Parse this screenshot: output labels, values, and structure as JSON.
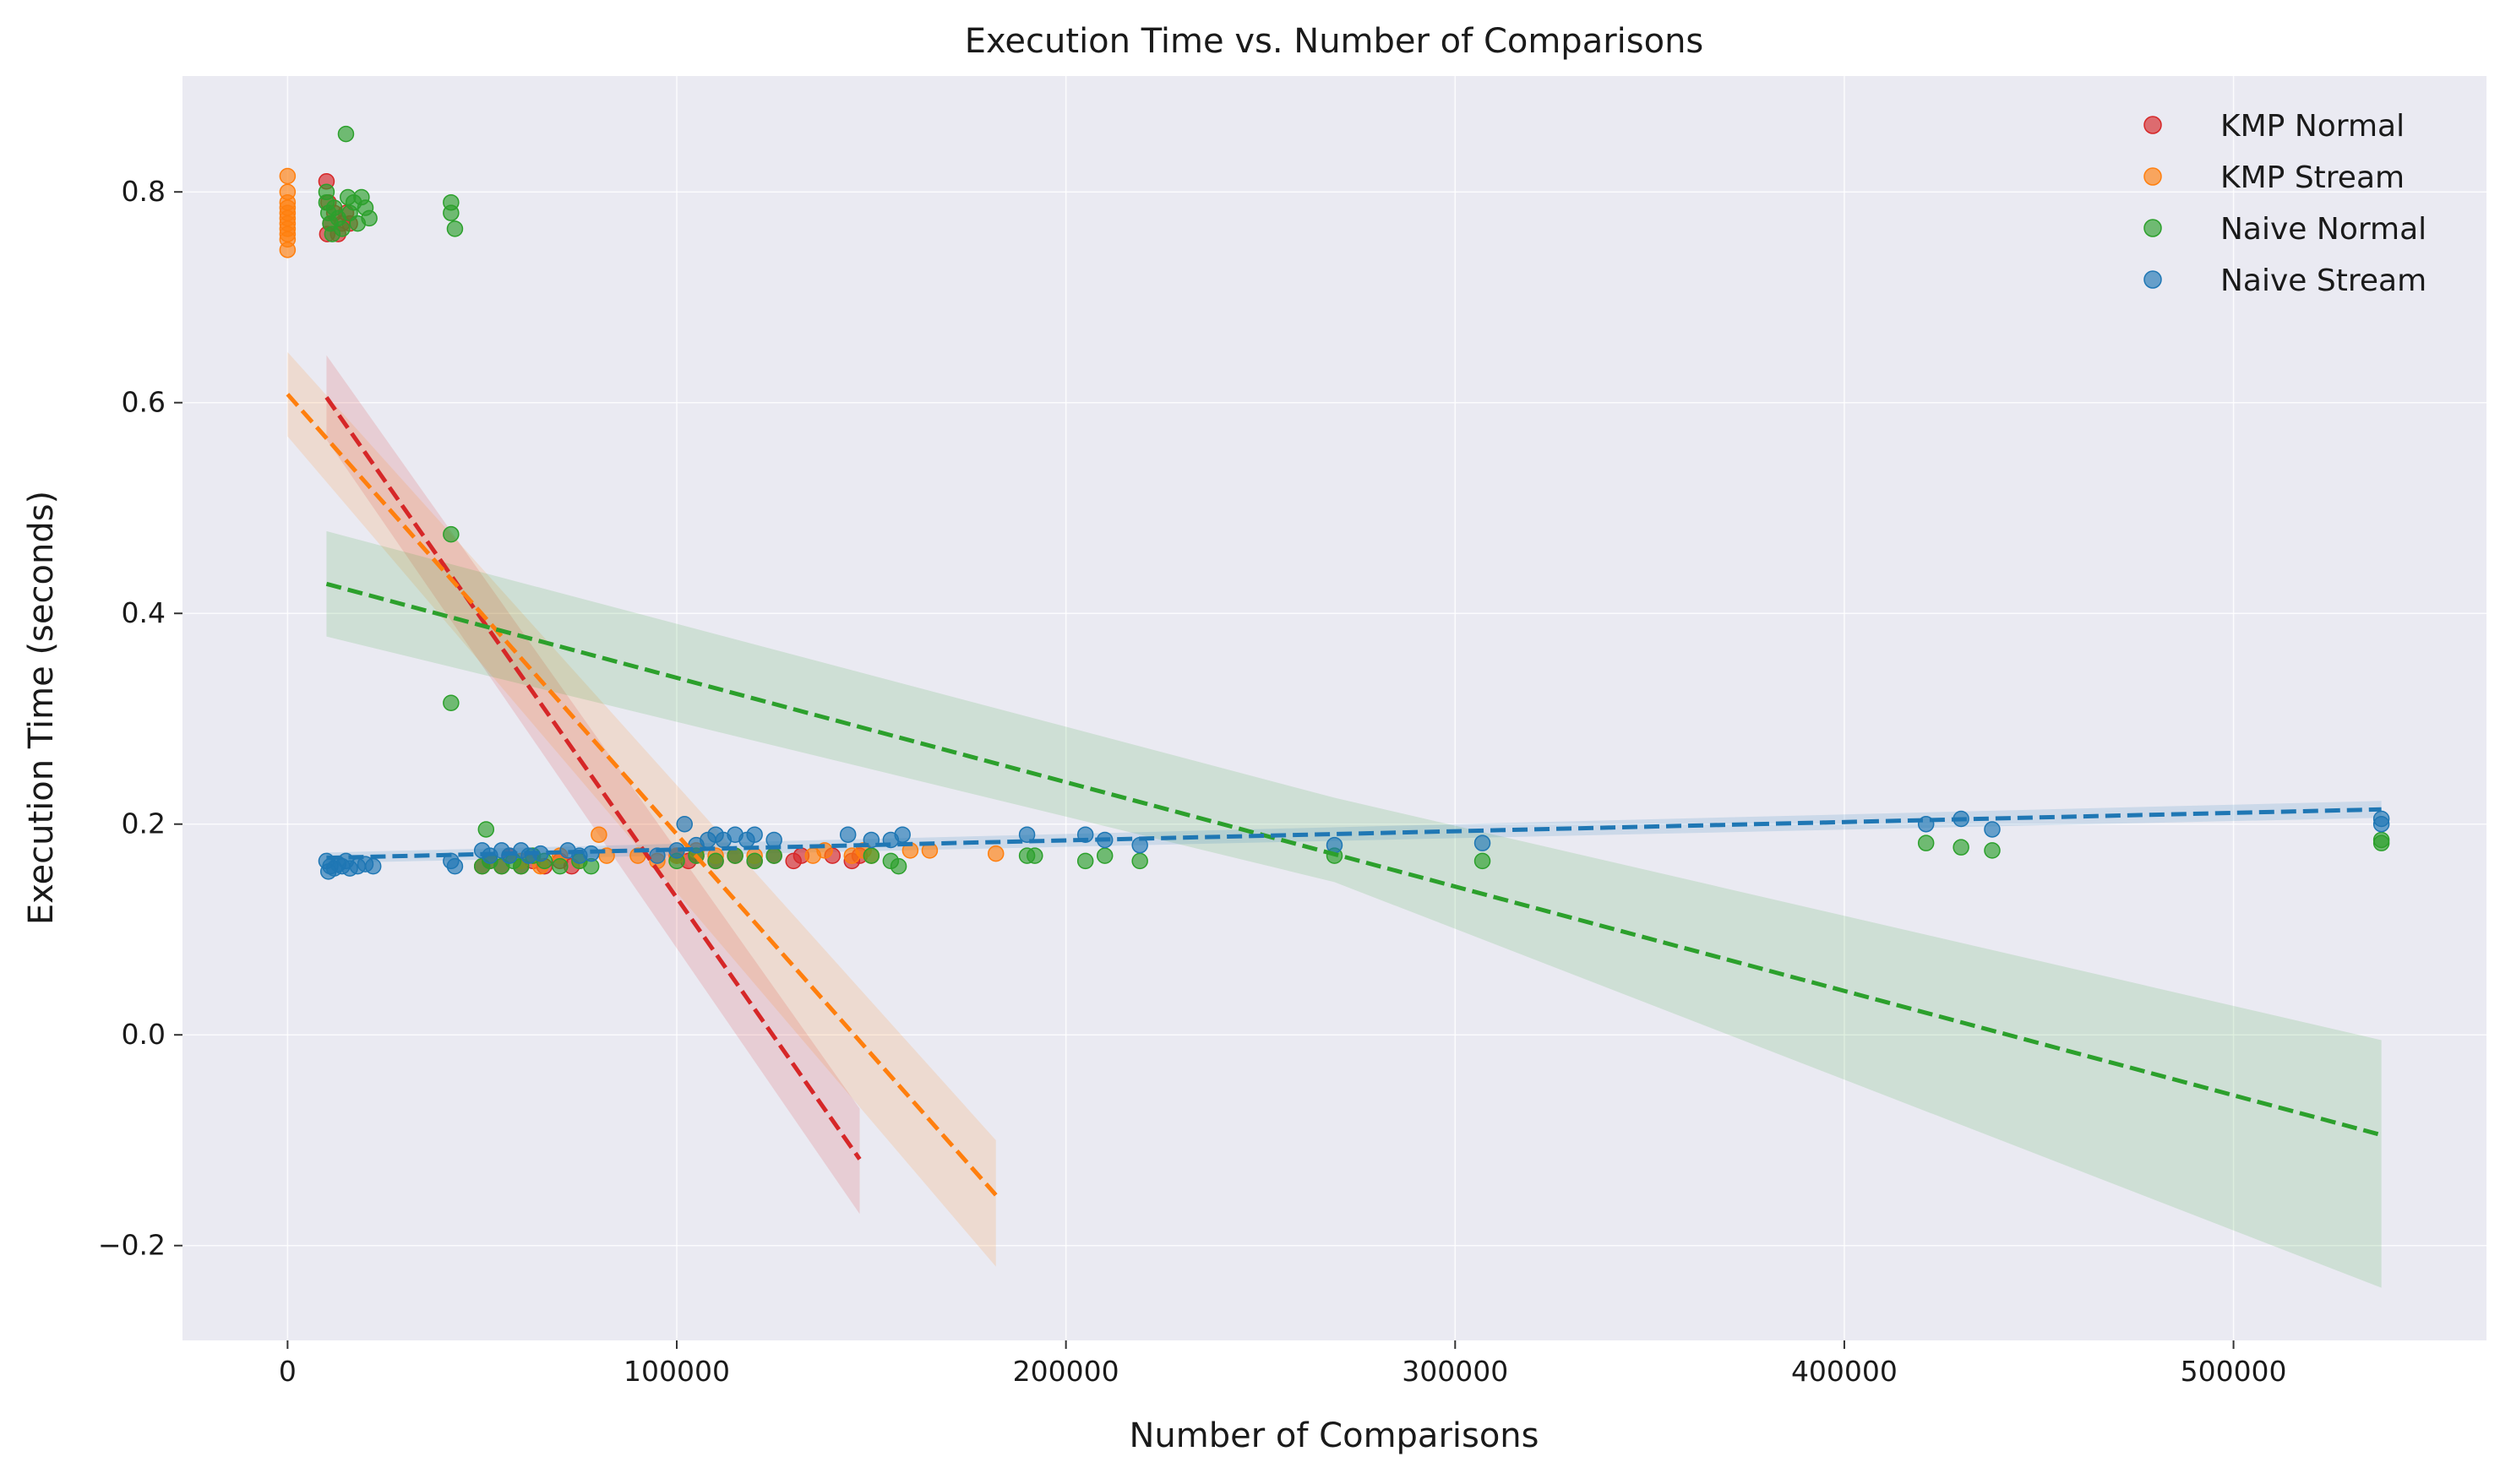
{
  "chart_data": {
    "type": "scatter",
    "title": "Execution Time vs. Number of Comparisons",
    "xlabel": "Number of Comparisons",
    "ylabel": "Execution Time (seconds)",
    "xlim": [
      -27000,
      565000
    ],
    "ylim": [
      -0.29,
      0.91
    ],
    "xticks": [
      0,
      100000,
      200000,
      300000,
      400000,
      500000
    ],
    "xtick_labels": [
      "0",
      "100000",
      "200000",
      "300000",
      "400000",
      "500000"
    ],
    "yticks": [
      -0.2,
      0.0,
      0.2,
      0.4,
      0.6,
      0.8
    ],
    "ytick_labels": [
      "−0.2",
      "0.0",
      "0.2",
      "0.4",
      "0.6",
      "0.8"
    ],
    "grid": true,
    "legend_position": "top-right",
    "series": [
      {
        "name": "KMP Normal",
        "color": "#d62728",
        "points": [
          [
            10000,
            0.81
          ],
          [
            10500,
            0.79
          ],
          [
            11000,
            0.77
          ],
          [
            10200,
            0.76
          ],
          [
            12000,
            0.78
          ],
          [
            13000,
            0.76
          ],
          [
            14000,
            0.77
          ],
          [
            15000,
            0.78
          ],
          [
            16000,
            0.77
          ],
          [
            50000,
            0.16
          ],
          [
            52000,
            0.165
          ],
          [
            55000,
            0.16
          ],
          [
            57000,
            0.17
          ],
          [
            60000,
            0.16
          ],
          [
            63000,
            0.165
          ],
          [
            66000,
            0.16
          ],
          [
            70000,
            0.165
          ],
          [
            73000,
            0.16
          ],
          [
            100000,
            0.17
          ],
          [
            103000,
            0.165
          ],
          [
            105000,
            0.17
          ],
          [
            110000,
            0.165
          ],
          [
            115000,
            0.17
          ],
          [
            120000,
            0.165
          ],
          [
            125000,
            0.17
          ],
          [
            130000,
            0.165
          ],
          [
            132000,
            0.17
          ],
          [
            140000,
            0.17
          ],
          [
            145000,
            0.165
          ],
          [
            147000,
            0.17
          ]
        ],
        "trend": {
          "x": [
            10000,
            147000
          ],
          "y": [
            0.605,
            -0.118
          ]
        },
        "ci": {
          "x": [
            10000,
            147000
          ],
          "lower": [
            0.565,
            -0.17
          ],
          "upper": [
            0.645,
            -0.07
          ]
        }
      },
      {
        "name": "KMP Stream",
        "color": "#ff7f0e",
        "points": [
          [
            0,
            0.815
          ],
          [
            0,
            0.8
          ],
          [
            0,
            0.79
          ],
          [
            0,
            0.785
          ],
          [
            0,
            0.78
          ],
          [
            0,
            0.775
          ],
          [
            0,
            0.77
          ],
          [
            0,
            0.765
          ],
          [
            0,
            0.76
          ],
          [
            0,
            0.755
          ],
          [
            0,
            0.745
          ],
          [
            60000,
            0.165
          ],
          [
            65000,
            0.16
          ],
          [
            70000,
            0.17
          ],
          [
            75000,
            0.165
          ],
          [
            80000,
            0.19
          ],
          [
            82000,
            0.17
          ],
          [
            90000,
            0.17
          ],
          [
            95000,
            0.165
          ],
          [
            100000,
            0.17
          ],
          [
            105000,
            0.175
          ],
          [
            110000,
            0.17
          ],
          [
            120000,
            0.17
          ],
          [
            135000,
            0.17
          ],
          [
            138000,
            0.175
          ],
          [
            145000,
            0.17
          ],
          [
            148000,
            0.175
          ],
          [
            150000,
            0.17
          ],
          [
            160000,
            0.175
          ],
          [
            165000,
            0.175
          ],
          [
            182000,
            0.172
          ]
        ],
        "trend": {
          "x": [
            0,
            182000
          ],
          "y": [
            0.608,
            -0.152
          ]
        },
        "ci": {
          "x": [
            0,
            182000
          ],
          "lower": [
            0.568,
            -0.22
          ],
          "upper": [
            0.648,
            -0.1
          ]
        }
      },
      {
        "name": "Naive Normal",
        "color": "#2ca02c",
        "points": [
          [
            10000,
            0.8
          ],
          [
            10000,
            0.79
          ],
          [
            10500,
            0.78
          ],
          [
            11000,
            0.77
          ],
          [
            11500,
            0.76
          ],
          [
            12000,
            0.785
          ],
          [
            13000,
            0.775
          ],
          [
            14000,
            0.765
          ],
          [
            15000,
            0.855
          ],
          [
            15500,
            0.795
          ],
          [
            16000,
            0.78
          ],
          [
            17000,
            0.79
          ],
          [
            18000,
            0.77
          ],
          [
            19000,
            0.795
          ],
          [
            20000,
            0.785
          ],
          [
            21000,
            0.775
          ],
          [
            42000,
            0.79
          ],
          [
            42000,
            0.78
          ],
          [
            43000,
            0.765
          ],
          [
            42000,
            0.475
          ],
          [
            42000,
            0.315
          ],
          [
            50000,
            0.16
          ],
          [
            51000,
            0.195
          ],
          [
            52000,
            0.165
          ],
          [
            55000,
            0.16
          ],
          [
            58000,
            0.165
          ],
          [
            60000,
            0.16
          ],
          [
            63000,
            0.17
          ],
          [
            66000,
            0.165
          ],
          [
            70000,
            0.16
          ],
          [
            75000,
            0.165
          ],
          [
            78000,
            0.16
          ],
          [
            100000,
            0.165
          ],
          [
            105000,
            0.17
          ],
          [
            110000,
            0.165
          ],
          [
            115000,
            0.17
          ],
          [
            120000,
            0.165
          ],
          [
            125000,
            0.17
          ],
          [
            150000,
            0.17
          ],
          [
            155000,
            0.165
          ],
          [
            157000,
            0.16
          ],
          [
            190000,
            0.17
          ],
          [
            192000,
            0.17
          ],
          [
            205000,
            0.165
          ],
          [
            210000,
            0.17
          ],
          [
            219000,
            0.165
          ],
          [
            269000,
            0.17
          ],
          [
            307000,
            0.165
          ],
          [
            421000,
            0.182
          ],
          [
            430000,
            0.178
          ],
          [
            438000,
            0.175
          ],
          [
            538000,
            0.185
          ],
          [
            538000,
            0.182
          ]
        ],
        "trend": {
          "x": [
            10000,
            538000
          ],
          "y": [
            0.428,
            -0.095
          ]
        },
        "ci": {
          "x": [
            10000,
            269000,
            538000
          ],
          "lower": [
            0.378,
            0.145,
            -0.24
          ],
          "upper": [
            0.478,
            0.225,
            -0.005
          ]
        }
      },
      {
        "name": "Naive Stream",
        "color": "#1f77b4",
        "points": [
          [
            10000,
            0.165
          ],
          [
            10500,
            0.155
          ],
          [
            11000,
            0.16
          ],
          [
            12000,
            0.158
          ],
          [
            13000,
            0.162
          ],
          [
            14000,
            0.16
          ],
          [
            15000,
            0.165
          ],
          [
            16000,
            0.158
          ],
          [
            18000,
            0.16
          ],
          [
            20000,
            0.162
          ],
          [
            22000,
            0.16
          ],
          [
            42000,
            0.165
          ],
          [
            43000,
            0.16
          ],
          [
            50000,
            0.175
          ],
          [
            52000,
            0.17
          ],
          [
            55000,
            0.175
          ],
          [
            57000,
            0.17
          ],
          [
            60000,
            0.175
          ],
          [
            62000,
            0.17
          ],
          [
            65000,
            0.172
          ],
          [
            72000,
            0.175
          ],
          [
            75000,
            0.17
          ],
          [
            78000,
            0.172
          ],
          [
            95000,
            0.17
          ],
          [
            100000,
            0.175
          ],
          [
            102000,
            0.2
          ],
          [
            105000,
            0.18
          ],
          [
            108000,
            0.185
          ],
          [
            110000,
            0.19
          ],
          [
            112000,
            0.185
          ],
          [
            115000,
            0.19
          ],
          [
            118000,
            0.185
          ],
          [
            120000,
            0.19
          ],
          [
            125000,
            0.185
          ],
          [
            144000,
            0.19
          ],
          [
            150000,
            0.185
          ],
          [
            155000,
            0.185
          ],
          [
            158000,
            0.19
          ],
          [
            190000,
            0.19
          ],
          [
            205000,
            0.19
          ],
          [
            210000,
            0.185
          ],
          [
            219000,
            0.18
          ],
          [
            269000,
            0.18
          ],
          [
            307000,
            0.182
          ],
          [
            421000,
            0.2
          ],
          [
            430000,
            0.205
          ],
          [
            438000,
            0.195
          ],
          [
            538000,
            0.205
          ],
          [
            538000,
            0.2
          ]
        ],
        "trend": {
          "x": [
            10000,
            538000
          ],
          "y": [
            0.168,
            0.214
          ]
        },
        "ci": {
          "x": [
            10000,
            538000
          ],
          "lower": [
            0.163,
            0.206
          ],
          "upper": [
            0.173,
            0.222
          ]
        }
      }
    ]
  }
}
